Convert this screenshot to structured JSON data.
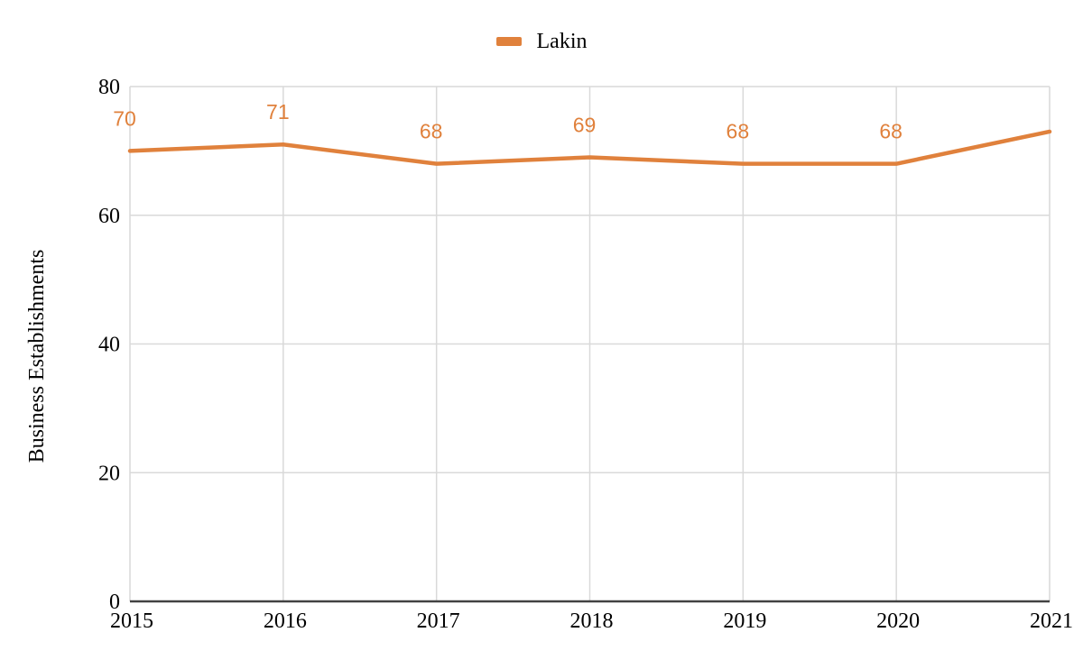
{
  "legend": {
    "label": "Lakin"
  },
  "chart_data": {
    "type": "line",
    "title": "",
    "xlabel": "",
    "ylabel": "Business Establishments",
    "x": [
      2015,
      2016,
      2017,
      2018,
      2019,
      2020,
      2021
    ],
    "series": [
      {
        "name": "Lakin",
        "values": [
          70,
          71,
          68,
          69,
          68,
          68,
          73
        ],
        "data_labels": [
          70,
          71,
          68,
          69,
          68,
          68,
          null
        ],
        "color": "#E0813C"
      }
    ],
    "ylim": [
      0,
      80
    ],
    "yticks": [
      0,
      20,
      40,
      60,
      80
    ],
    "grid": true,
    "legend_position": "top"
  },
  "colors": {
    "accent": "#E0813C",
    "grid": "#D9D9D9",
    "axis": "#424242",
    "text": "#000000"
  }
}
